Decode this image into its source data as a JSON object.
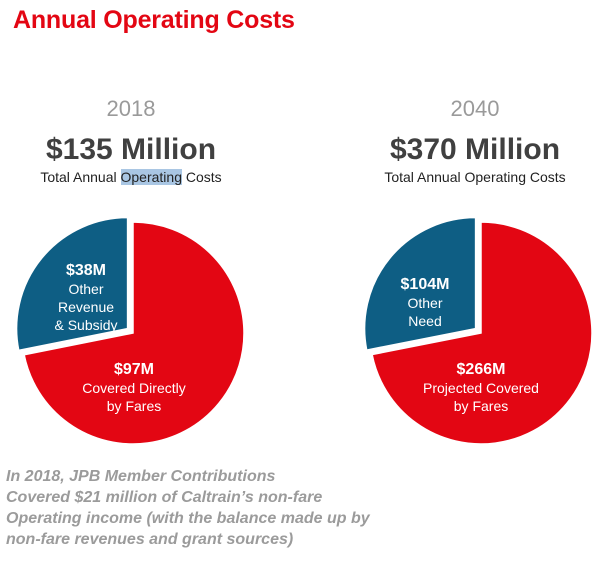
{
  "page": {
    "title": "Annual Operating Costs",
    "note_lines": [
      "In 2018, JPB Member Contributions",
      "Covered $21 million of Caltrain’s non-fare",
      "Operating income (with the balance made up by",
      "non-fare revenues and grant sources)"
    ]
  },
  "colors": {
    "title": "#e30613",
    "fares": "#e30613",
    "other": "#0e5e84"
  },
  "chart_data": [
    {
      "type": "pie",
      "year": "2018",
      "total_label": "$135 Million",
      "subtitle_pre": "Total Annual ",
      "subtitle_highlight": "Operating",
      "subtitle_post": " Costs",
      "slices": [
        {
          "value": 97,
          "value_label": "$97M",
          "desc_lines": [
            "Covered Directly",
            "by Fares"
          ],
          "color": "#e30613",
          "exploded": false
        },
        {
          "value": 38,
          "value_label": "$38M",
          "desc_lines": [
            "Other",
            "Revenue",
            "& Subsidy"
          ],
          "color": "#0e5e84",
          "exploded": true
        }
      ]
    },
    {
      "type": "pie",
      "year": "2040",
      "total_label": "$370 Million",
      "subtitle_pre": "Total Annual Operating Costs",
      "subtitle_highlight": "",
      "subtitle_post": "",
      "slices": [
        {
          "value": 266,
          "value_label": "$266M",
          "desc_lines": [
            "Projected Covered",
            "by Fares"
          ],
          "color": "#e30613",
          "exploded": false
        },
        {
          "value": 104,
          "value_label": "$104M",
          "desc_lines": [
            "Other",
            "Need"
          ],
          "color": "#0e5e84",
          "exploded": true
        }
      ]
    }
  ]
}
